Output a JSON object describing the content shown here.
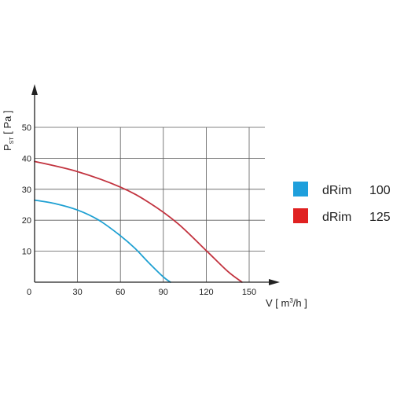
{
  "chart_data": {
    "type": "line",
    "title": "",
    "xlabel": {
      "main": "V [ m",
      "sup": "3",
      "tail": "/h ]"
    },
    "ylabel": {
      "main": "P",
      "sub": "ST",
      "tail": " [ Pa ]"
    },
    "xlim": [
      0,
      165
    ],
    "ylim": [
      0,
      60
    ],
    "x_ticks": [
      0,
      30,
      60,
      90,
      120,
      150
    ],
    "y_ticks": [
      10,
      20,
      30,
      40,
      50
    ],
    "grid": true,
    "legend_position": "right",
    "series": [
      {
        "name": "dRim",
        "size": "100",
        "color": "#1ea0d2",
        "legend_color": "#1e9fdc",
        "x": [
          0,
          15,
          30,
          45,
          60,
          70,
          80,
          90,
          95
        ],
        "y": [
          26.5,
          25.3,
          23.3,
          20,
          15,
          11,
          6.2,
          1.7,
          0
        ]
      },
      {
        "name": "dRim",
        "size": "125",
        "color": "#c2333f",
        "legend_color": "#e02121",
        "x": [
          0,
          30,
          60,
          80,
          100,
          120,
          135,
          145
        ],
        "y": [
          39,
          35.7,
          30.7,
          25.7,
          19,
          10.2,
          3.5,
          0
        ]
      }
    ]
  }
}
